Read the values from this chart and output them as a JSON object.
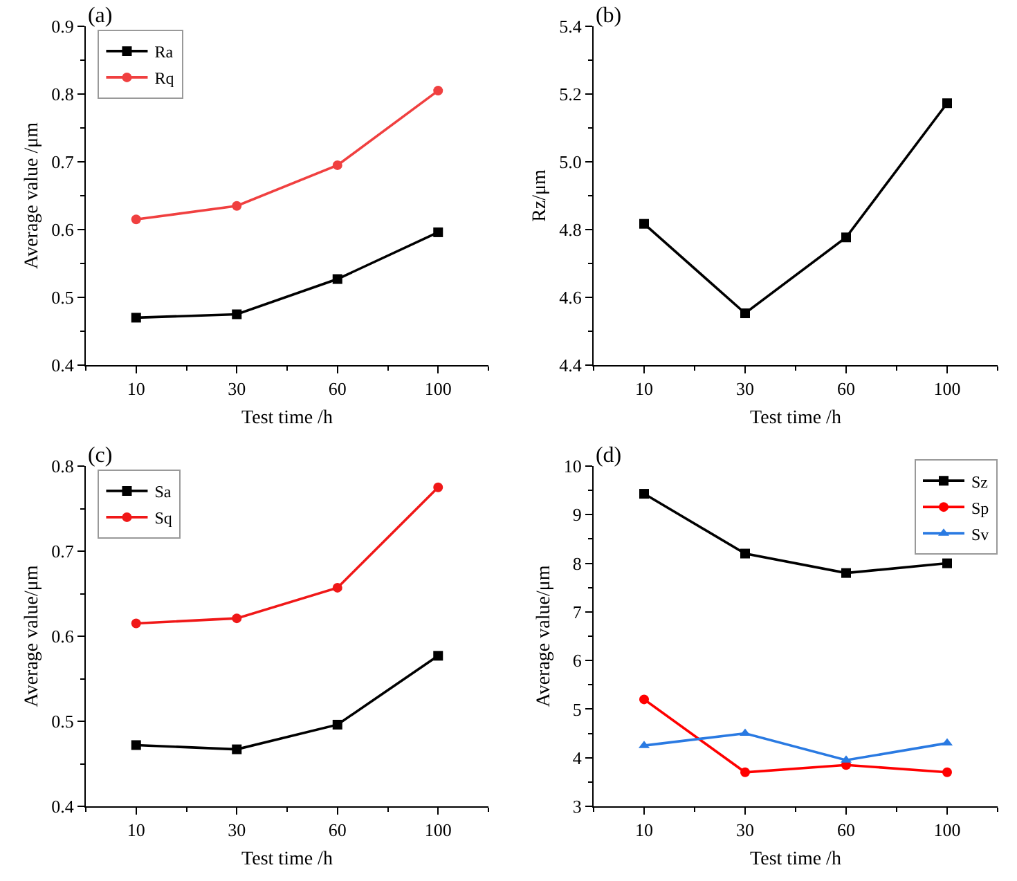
{
  "chart_data": [
    {
      "type": "line",
      "title": "(a)",
      "xlabel": "Test time /h",
      "ylabel": "Average value /μm",
      "categories": [
        "10",
        "30",
        "60",
        "100"
      ],
      "series": [
        {
          "name": "Ra",
          "color": "#000000",
          "marker": "square",
          "values": [
            0.47,
            0.475,
            0.527,
            0.596
          ]
        },
        {
          "name": "Rq",
          "color": "#f04040",
          "marker": "circle",
          "values": [
            0.615,
            0.635,
            0.695,
            0.805
          ]
        }
      ],
      "ylim": [
        0.4,
        0.9
      ],
      "yticks": [
        0.4,
        0.5,
        0.6,
        0.7,
        0.8,
        0.9
      ],
      "grid": false,
      "legend": "top left",
      "line_style": "solid"
    },
    {
      "type": "line",
      "title": "(b)",
      "xlabel": "Test time /h",
      "ylabel": "Rz/μm",
      "categories": [
        "10",
        "30",
        "60",
        "100"
      ],
      "series": [
        {
          "color": "#000000",
          "marker": "square",
          "values": [
            4.817,
            4.553,
            4.777,
            5.173
          ]
        }
      ],
      "ylim": [
        4.4,
        5.4
      ],
      "yticks": [
        4.4,
        4.6,
        4.8,
        {
          "value": 5.0,
          "label": "5.0"
        },
        5.2,
        5.4
      ],
      "grid": false,
      "legend": false,
      "line_style": "solid"
    },
    {
      "type": "line",
      "title": "(c)",
      "xlabel": "Test time /h",
      "ylabel": "Average value/μm",
      "categories": [
        "10",
        "30",
        "60",
        "100"
      ],
      "series": [
        {
          "name": "Sa",
          "color": "#000000",
          "marker": "square",
          "values": [
            0.472,
            0.467,
            0.496,
            0.577
          ]
        },
        {
          "name": "Sq",
          "color": "#f01818",
          "marker": "circle",
          "values": [
            0.615,
            0.621,
            0.657,
            0.775
          ]
        }
      ],
      "ylim": [
        0.4,
        0.8
      ],
      "yticks": [
        0.4,
        0.5,
        0.6,
        0.7,
        0.8
      ],
      "grid": false,
      "legend": "top left",
      "line_style": "solid"
    },
    {
      "type": "line",
      "title": "(d)",
      "xlabel": "Test time /h",
      "ylabel": "Average value/μm",
      "categories": [
        "10",
        "30",
        "60",
        "100"
      ],
      "series": [
        {
          "name": "Sz",
          "color": "#000000",
          "marker": "square",
          "values": [
            9.43,
            8.2,
            7.8,
            8.0
          ]
        },
        {
          "name": "Sp",
          "color": "#ff0000",
          "marker": "circle",
          "values": [
            5.2,
            3.7,
            3.85,
            3.7
          ]
        },
        {
          "name": "Sv",
          "color": "#2a7ae2",
          "marker": "triangle",
          "values": [
            4.25,
            4.5,
            3.95,
            4.3
          ]
        }
      ],
      "ylim": [
        3,
        10
      ],
      "yticks": [
        3,
        4,
        5,
        6,
        7,
        8,
        9,
        10
      ],
      "grid": false,
      "legend": "top right",
      "line_style": "solid"
    }
  ]
}
